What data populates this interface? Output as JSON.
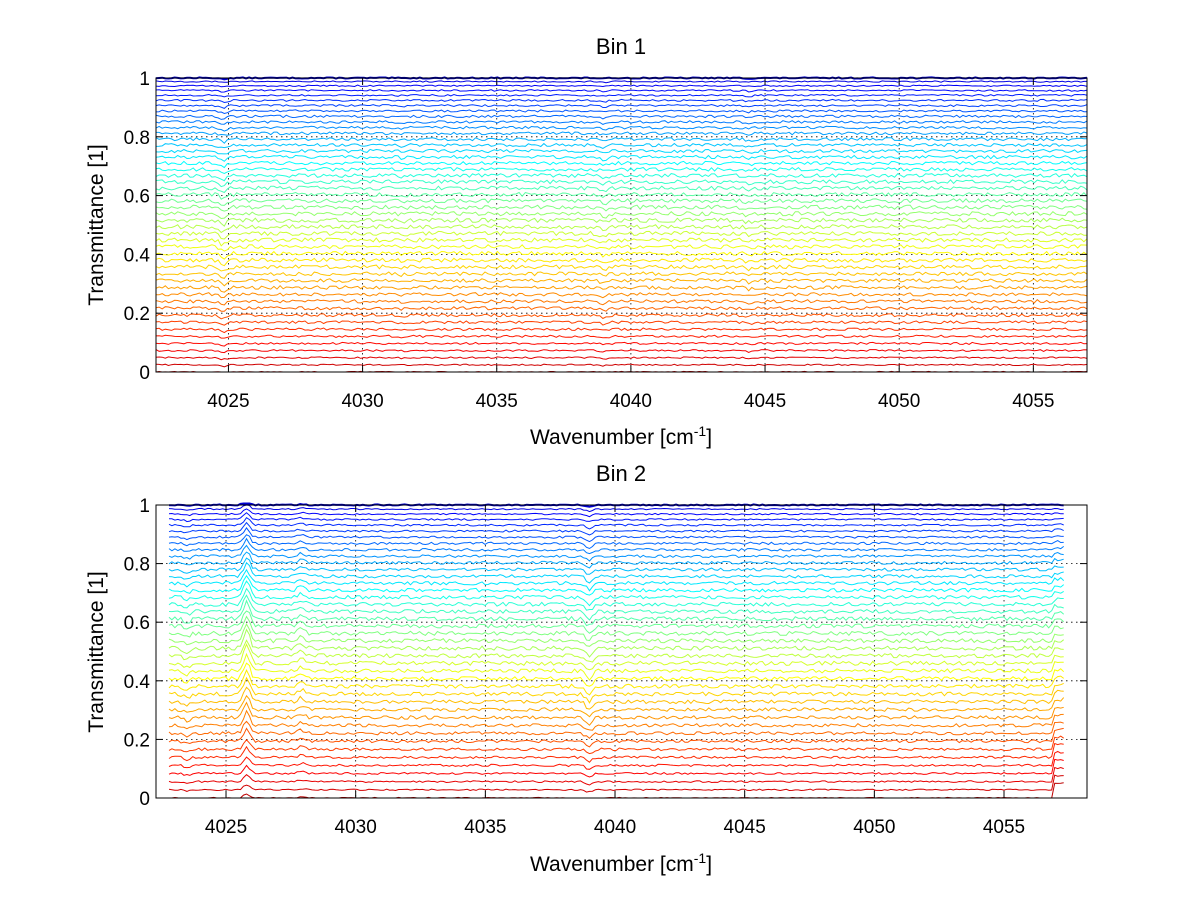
{
  "chart_data": [
    {
      "type": "line",
      "title": "Bin 1",
      "xlabel": "Wavenumber [cm",
      "xlabel_sup": "-1",
      "xlabel_end": "]",
      "ylabel": "Transmittance [1]",
      "xlim": [
        4022.3,
        4057
      ],
      "ylim": [
        0,
        1
      ],
      "xticks": [
        4025,
        4030,
        4035,
        4040,
        4045,
        4050,
        4055
      ],
      "yticks": [
        0,
        0.2,
        0.4,
        0.6,
        0.8,
        1
      ],
      "xtick_labels": [
        "4025",
        "4030",
        "4035",
        "4040",
        "4045",
        "4050",
        "4055"
      ],
      "ytick_labels": [
        "0",
        "0.2",
        "0.4",
        "0.6",
        "0.8",
        "1"
      ],
      "grid": true,
      "series_count": 48,
      "x_range": [
        4022.3,
        4057
      ],
      "colormap": "jet",
      "features": [
        {
          "x": 4024.8,
          "depth": 0.012
        },
        {
          "x": 4039.0,
          "depth": 0.008
        },
        {
          "x": 4044.4,
          "depth": 0.006
        },
        {
          "x": 4031.5,
          "depth": 0.003
        }
      ]
    },
    {
      "type": "line",
      "title": "Bin 2",
      "xlabel": "Wavenumber [cm",
      "xlabel_sup": "-1",
      "xlabel_end": "]",
      "ylabel": "Transmittance [1]",
      "xlim": [
        4022.3,
        4058.2
      ],
      "ylim": [
        0,
        1
      ],
      "xticks": [
        4025,
        4030,
        4035,
        4040,
        4045,
        4050,
        4055
      ],
      "yticks": [
        0,
        0.2,
        0.4,
        0.6,
        0.8,
        1
      ],
      "xtick_labels": [
        "4025",
        "4030",
        "4035",
        "4040",
        "4045",
        "4050",
        "4055"
      ],
      "ytick_labels": [
        "0",
        "0.2",
        "0.4",
        "0.6",
        "0.8",
        "1"
      ],
      "grid": true,
      "series_count": 42,
      "x_range": [
        4022.8,
        4057.3
      ],
      "colormap": "jet",
      "features": [
        {
          "x": 4025.8,
          "depth": -0.045
        },
        {
          "x": 4027.9,
          "depth": -0.012
        },
        {
          "x": 4039.0,
          "depth": 0.02
        },
        {
          "x": 4023.5,
          "depth": 0.01
        }
      ]
    }
  ]
}
